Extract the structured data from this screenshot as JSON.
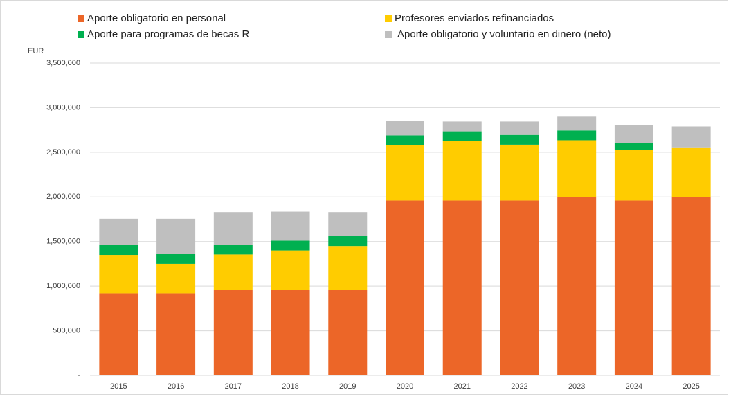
{
  "chart_data": {
    "type": "stacked_bar",
    "y_axis_label": "EUR",
    "categories": [
      "2015",
      "2016",
      "2017",
      "2018",
      "2019",
      "2020",
      "2021",
      "2022",
      "2023",
      "2024",
      "2025"
    ],
    "series": [
      {
        "name": "Aporte obligatorio en personal",
        "color": "#ec6628",
        "values": [
          920000,
          920000,
          960000,
          960000,
          960000,
          1960000,
          1960000,
          1960000,
          2000000,
          1960000,
          2000000
        ]
      },
      {
        "name": "Profesores enviados refinanciados",
        "color": "#ffcc00",
        "values": [
          430000,
          330000,
          395000,
          440000,
          490000,
          620000,
          665000,
          625000,
          635000,
          565000,
          555000
        ]
      },
      {
        "name": "Aporte para programas de becas R",
        "color": "#00b050",
        "values": [
          110000,
          110000,
          105000,
          110000,
          110000,
          110000,
          110000,
          110000,
          110000,
          80000,
          0
        ]
      },
      {
        "name": "Aporte obligatorio y voluntario en dinero (neto)",
        "color": "#bfbfbf",
        "values": [
          295000,
          395000,
          370000,
          325000,
          270000,
          160000,
          110000,
          150000,
          155000,
          200000,
          235000
        ]
      }
    ],
    "ylim": [
      0,
      3500000
    ],
    "yticks": [
      {
        "value": 0,
        "label": "-"
      },
      {
        "value": 500000,
        "label": "500,000"
      },
      {
        "value": 1000000,
        "label": "1,000,000"
      },
      {
        "value": 1500000,
        "label": "1,500,000"
      },
      {
        "value": 2000000,
        "label": "2,000,000"
      },
      {
        "value": 2500000,
        "label": "2,500,000"
      },
      {
        "value": 3000000,
        "label": "3,000,000"
      },
      {
        "value": 3500000,
        "label": "3,500,000"
      }
    ],
    "grid": true
  }
}
